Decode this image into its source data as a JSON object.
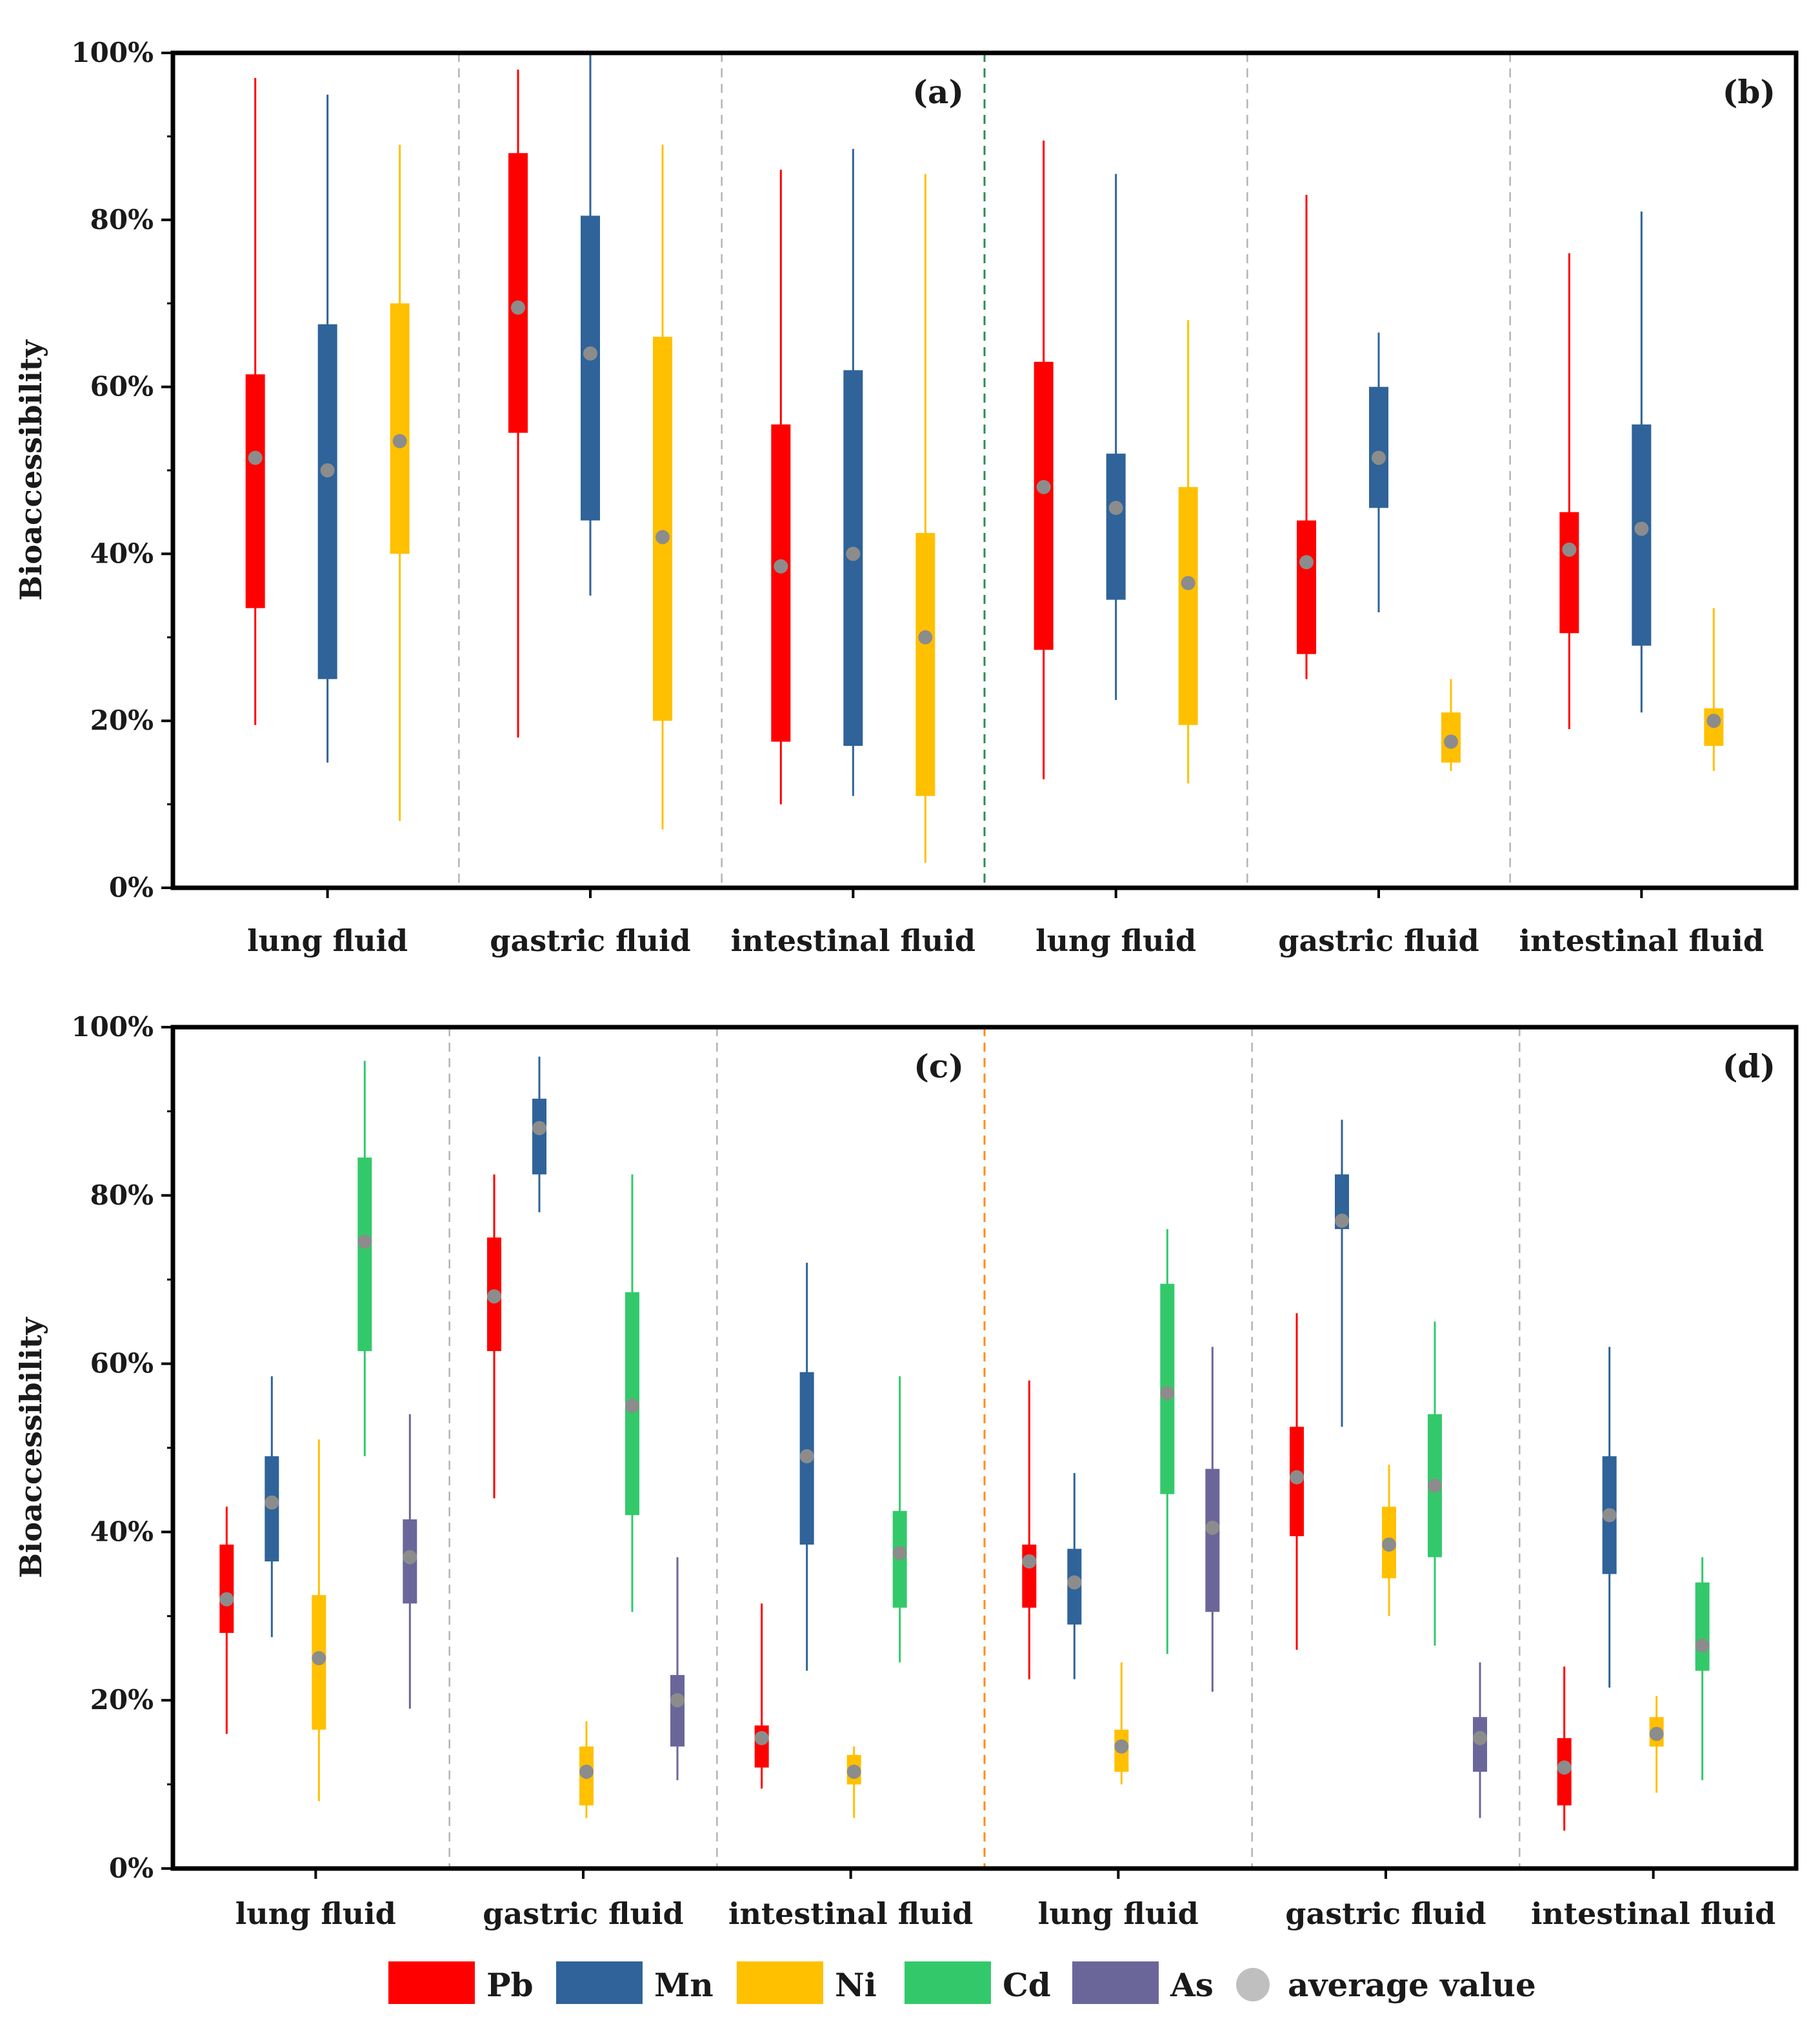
{
  "legend": {
    "items": [
      {
        "key": "Pb",
        "label": "Pb",
        "color": "#ff0000"
      },
      {
        "key": "Mn",
        "label": "Mn",
        "color": "#2f6399"
      },
      {
        "key": "Ni",
        "label": "Ni",
        "color": "#ffc000"
      },
      {
        "key": "Cd",
        "label": "Cd",
        "color": "#33c96b"
      },
      {
        "key": "As",
        "label": "As",
        "color": "#6b669a"
      }
    ],
    "average_label": "average value",
    "average_color": "#8c8c8c"
  },
  "chart_data": [
    {
      "type": "boxplot",
      "ylabel": "Bioaccessibility",
      "ylim": [
        0,
        100
      ],
      "yticks": [
        "0%",
        "20%",
        "40%",
        "60%",
        "80%",
        "100%"
      ],
      "panels": [
        "(a)",
        "(b)"
      ],
      "divider_color": "#2e8b57",
      "elements": [
        "Pb",
        "Mn",
        "Ni"
      ],
      "groups": [
        {
          "label": "lung fluid",
          "panel": 0,
          "boxes": [
            {
              "el": "Pb",
              "min": 19.5,
              "q1": 33.5,
              "q3": 61.5,
              "max": 97,
              "mean": 51.5
            },
            {
              "el": "Mn",
              "min": 15,
              "q1": 25,
              "q3": 67.5,
              "max": 95,
              "mean": 50
            },
            {
              "el": "Ni",
              "min": 8,
              "q1": 40,
              "q3": 70,
              "max": 89,
              "mean": 53.5
            }
          ]
        },
        {
          "label": "gastric fluid",
          "panel": 0,
          "boxes": [
            {
              "el": "Pb",
              "min": 18,
              "q1": 54.5,
              "q3": 88,
              "max": 98,
              "mean": 69.5
            },
            {
              "el": "Mn",
              "min": 35,
              "q1": 44,
              "q3": 80.5,
              "max": 100,
              "mean": 64
            },
            {
              "el": "Ni",
              "min": 7,
              "q1": 20,
              "q3": 66,
              "max": 89,
              "mean": 42
            }
          ]
        },
        {
          "label": "intestinal fluid",
          "panel": 0,
          "boxes": [
            {
              "el": "Pb",
              "min": 10,
              "q1": 17.5,
              "q3": 55.5,
              "max": 86,
              "mean": 38.5
            },
            {
              "el": "Mn",
              "min": 11,
              "q1": 17,
              "q3": 62,
              "max": 88.5,
              "mean": 40
            },
            {
              "el": "Ni",
              "min": 3,
              "q1": 11,
              "q3": 42.5,
              "max": 85.5,
              "mean": 30
            }
          ]
        },
        {
          "label": "lung fluid",
          "panel": 1,
          "boxes": [
            {
              "el": "Pb",
              "min": 13,
              "q1": 28.5,
              "q3": 63,
              "max": 89.5,
              "mean": 48
            },
            {
              "el": "Mn",
              "min": 22.5,
              "q1": 34.5,
              "q3": 52,
              "max": 85.5,
              "mean": 45.5
            },
            {
              "el": "Ni",
              "min": 12.5,
              "q1": 19.5,
              "q3": 48,
              "max": 68,
              "mean": 36.5
            }
          ]
        },
        {
          "label": "gastric fluid",
          "panel": 1,
          "boxes": [
            {
              "el": "Pb",
              "min": 25,
              "q1": 28,
              "q3": 44,
              "max": 83,
              "mean": 39
            },
            {
              "el": "Mn",
              "min": 33,
              "q1": 45.5,
              "q3": 60,
              "max": 66.5,
              "mean": 51.5
            },
            {
              "el": "Ni",
              "min": 14,
              "q1": 15,
              "q3": 21,
              "max": 25,
              "mean": 17.5
            }
          ]
        },
        {
          "label": "intestinal fluid",
          "panel": 1,
          "boxes": [
            {
              "el": "Pb",
              "min": 19,
              "q1": 30.5,
              "q3": 45,
              "max": 76,
              "mean": 40.5
            },
            {
              "el": "Mn",
              "min": 21,
              "q1": 29,
              "q3": 55.5,
              "max": 81,
              "mean": 43
            },
            {
              "el": "Ni",
              "min": 14,
              "q1": 17,
              "q3": 21.5,
              "max": 33.5,
              "mean": 20
            }
          ]
        }
      ]
    },
    {
      "type": "boxplot",
      "ylabel": "Bioaccessibility",
      "ylim": [
        0,
        100
      ],
      "yticks": [
        "0%",
        "20%",
        "40%",
        "60%",
        "80%",
        "100%"
      ],
      "panels": [
        "(c)",
        "(d)"
      ],
      "divider_color": "#ff8c1a",
      "elements": [
        "Pb",
        "Mn",
        "Ni",
        "Cd",
        "As"
      ],
      "groups": [
        {
          "label": "lung fluid",
          "panel": 0,
          "boxes": [
            {
              "el": "Pb",
              "min": 16,
              "q1": 28,
              "q3": 38.5,
              "max": 43,
              "mean": 32
            },
            {
              "el": "Mn",
              "min": 27.5,
              "q1": 36.5,
              "q3": 49,
              "max": 58.5,
              "mean": 43.5
            },
            {
              "el": "Ni",
              "min": 8,
              "q1": 16.5,
              "q3": 32.5,
              "max": 51,
              "mean": 25
            },
            {
              "el": "Cd",
              "min": 49,
              "q1": 61.5,
              "q3": 84.5,
              "max": 96,
              "mean": 74.5
            },
            {
              "el": "As",
              "min": 19,
              "q1": 31.5,
              "q3": 41.5,
              "max": 54,
              "mean": 37
            }
          ]
        },
        {
          "label": "gastric fluid",
          "panel": 0,
          "boxes": [
            {
              "el": "Pb",
              "min": 44,
              "q1": 61.5,
              "q3": 75,
              "max": 82.5,
              "mean": 68
            },
            {
              "el": "Mn",
              "min": 78,
              "q1": 82.5,
              "q3": 91.5,
              "max": 96.5,
              "mean": 88
            },
            {
              "el": "Ni",
              "min": 6,
              "q1": 7.5,
              "q3": 14.5,
              "max": 17.5,
              "mean": 11.5
            },
            {
              "el": "Cd",
              "min": 30.5,
              "q1": 42,
              "q3": 68.5,
              "max": 82.5,
              "mean": 55
            },
            {
              "el": "As",
              "min": 10.5,
              "q1": 14.5,
              "q3": 23,
              "max": 37,
              "mean": 20
            }
          ]
        },
        {
          "label": "intestinal fluid",
          "panel": 0,
          "boxes": [
            {
              "el": "Pb",
              "min": 9.5,
              "q1": 12,
              "q3": 17,
              "max": 31.5,
              "mean": 15.5
            },
            {
              "el": "Mn",
              "min": 23.5,
              "q1": 38.5,
              "q3": 59,
              "max": 72,
              "mean": 49
            },
            {
              "el": "Ni",
              "min": 6,
              "q1": 10,
              "q3": 13.5,
              "max": 14.5,
              "mean": 11.5
            },
            {
              "el": "Cd",
              "min": 24.5,
              "q1": 31,
              "q3": 42.5,
              "max": 58.5,
              "mean": 37.5
            }
          ]
        },
        {
          "label": "lung fluid",
          "panel": 1,
          "boxes": [
            {
              "el": "Pb",
              "min": 22.5,
              "q1": 31,
              "q3": 38.5,
              "max": 58,
              "mean": 36.5
            },
            {
              "el": "Mn",
              "min": 22.5,
              "q1": 29,
              "q3": 38,
              "max": 47,
              "mean": 34
            },
            {
              "el": "Ni",
              "min": 10,
              "q1": 11.5,
              "q3": 16.5,
              "max": 24.5,
              "mean": 14.5
            },
            {
              "el": "Cd",
              "min": 25.5,
              "q1": 44.5,
              "q3": 69.5,
              "max": 76,
              "mean": 56.5
            },
            {
              "el": "As",
              "min": 21,
              "q1": 30.5,
              "q3": 47.5,
              "max": 62,
              "mean": 40.5
            }
          ]
        },
        {
          "label": "gastric fluid",
          "panel": 1,
          "boxes": [
            {
              "el": "Pb",
              "min": 26,
              "q1": 39.5,
              "q3": 52.5,
              "max": 66,
              "mean": 46.5
            },
            {
              "el": "Mn",
              "min": 52.5,
              "q1": 76,
              "q3": 82.5,
              "max": 89,
              "mean": 77
            },
            {
              "el": "Ni",
              "min": 30,
              "q1": 34.5,
              "q3": 43,
              "max": 48,
              "mean": 38.5
            },
            {
              "el": "Cd",
              "min": 26.5,
              "q1": 37,
              "q3": 54,
              "max": 65,
              "mean": 45.5
            },
            {
              "el": "As",
              "min": 6,
              "q1": 11.5,
              "q3": 18,
              "max": 24.5,
              "mean": 15.5
            }
          ]
        },
        {
          "label": "intestinal fluid",
          "panel": 1,
          "boxes": [
            {
              "el": "Pb",
              "min": 4.5,
              "q1": 7.5,
              "q3": 15.5,
              "max": 24,
              "mean": 12
            },
            {
              "el": "Mn",
              "min": 21.5,
              "q1": 35,
              "q3": 49,
              "max": 62,
              "mean": 42
            },
            {
              "el": "Ni",
              "min": 9,
              "q1": 14.5,
              "q3": 18,
              "max": 20.5,
              "mean": 16
            },
            {
              "el": "Cd",
              "min": 10.5,
              "q1": 23.5,
              "q3": 34,
              "max": 37,
              "mean": 26.5
            }
          ]
        }
      ]
    }
  ]
}
